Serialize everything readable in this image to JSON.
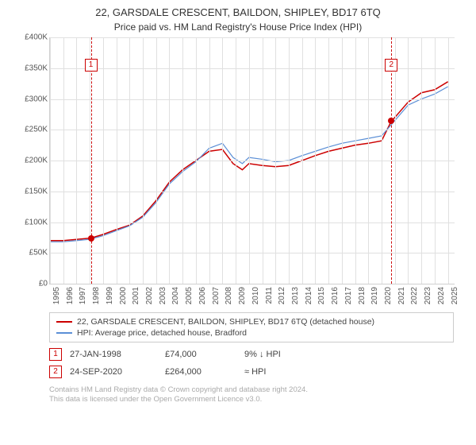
{
  "title": "22, GARSDALE CRESCENT, BAILDON, SHIPLEY, BD17 6TQ",
  "subtitle": "Price paid vs. HM Land Registry's House Price Index (HPI)",
  "chart": {
    "type": "line",
    "x_years": [
      1995,
      1996,
      1997,
      1998,
      1999,
      2000,
      2001,
      2002,
      2003,
      2004,
      2005,
      2006,
      2007,
      2008,
      2009,
      2010,
      2011,
      2012,
      2013,
      2014,
      2015,
      2016,
      2017,
      2018,
      2019,
      2020,
      2021,
      2022,
      2023,
      2024,
      2025
    ],
    "x_range": [
      1995,
      2025.5
    ],
    "ylim": [
      0,
      400000
    ],
    "ytick_step": 50000,
    "yticks": [
      0,
      50000,
      100000,
      150000,
      200000,
      250000,
      300000,
      350000,
      400000
    ],
    "ytick_labels": [
      "£0",
      "£50K",
      "£100K",
      "£150K",
      "£200K",
      "£250K",
      "£300K",
      "£350K",
      "£400K"
    ],
    "grid_color": "#e0e0e0",
    "background_color": "#ffffff",
    "series": [
      {
        "name": "property",
        "label": "22, GARSDALE CRESCENT, BAILDON, SHIPLEY, BD17 6TQ (detached house)",
        "color": "#cc0000",
        "line_width": 1.5,
        "data": [
          [
            1995,
            70000
          ],
          [
            1996,
            70000
          ],
          [
            1997,
            72000
          ],
          [
            1998.08,
            74000
          ],
          [
            1999,
            80000
          ],
          [
            2000,
            88000
          ],
          [
            2001,
            95000
          ],
          [
            2002,
            110000
          ],
          [
            2003,
            135000
          ],
          [
            2004,
            165000
          ],
          [
            2005,
            185000
          ],
          [
            2006,
            200000
          ],
          [
            2007,
            215000
          ],
          [
            2008,
            218000
          ],
          [
            2008.8,
            195000
          ],
          [
            2009.5,
            185000
          ],
          [
            2010,
            195000
          ],
          [
            2011,
            192000
          ],
          [
            2012,
            190000
          ],
          [
            2013,
            192000
          ],
          [
            2014,
            200000
          ],
          [
            2015,
            208000
          ],
          [
            2016,
            215000
          ],
          [
            2017,
            220000
          ],
          [
            2018,
            225000
          ],
          [
            2019,
            228000
          ],
          [
            2020,
            232000
          ],
          [
            2020.73,
            264000
          ],
          [
            2021,
            270000
          ],
          [
            2022,
            295000
          ],
          [
            2023,
            310000
          ],
          [
            2024,
            315000
          ],
          [
            2025,
            328000
          ]
        ]
      },
      {
        "name": "hpi",
        "label": "HPI: Average price, detached house, Bradford",
        "color": "#5b8fd6",
        "line_width": 1.2,
        "data": [
          [
            1995,
            68000
          ],
          [
            1996,
            68000
          ],
          [
            1997,
            70000
          ],
          [
            1998,
            72000
          ],
          [
            1999,
            78000
          ],
          [
            2000,
            86000
          ],
          [
            2001,
            94000
          ],
          [
            2002,
            108000
          ],
          [
            2003,
            132000
          ],
          [
            2004,
            162000
          ],
          [
            2005,
            182000
          ],
          [
            2006,
            198000
          ],
          [
            2007,
            220000
          ],
          [
            2008,
            228000
          ],
          [
            2008.8,
            205000
          ],
          [
            2009.5,
            195000
          ],
          [
            2010,
            205000
          ],
          [
            2011,
            202000
          ],
          [
            2012,
            198000
          ],
          [
            2013,
            200000
          ],
          [
            2014,
            208000
          ],
          [
            2015,
            215000
          ],
          [
            2016,
            222000
          ],
          [
            2017,
            228000
          ],
          [
            2018,
            232000
          ],
          [
            2019,
            236000
          ],
          [
            2020,
            240000
          ],
          [
            2021,
            265000
          ],
          [
            2022,
            290000
          ],
          [
            2023,
            300000
          ],
          [
            2024,
            308000
          ],
          [
            2025,
            320000
          ]
        ]
      }
    ],
    "markers": [
      {
        "n": "1",
        "x": 1998.08,
        "y": 74000,
        "box_y_top": true
      },
      {
        "n": "2",
        "x": 2020.73,
        "y": 264000,
        "box_y_top": true
      }
    ]
  },
  "legend": {
    "items": [
      {
        "color": "#cc0000",
        "label": "22, GARSDALE CRESCENT, BAILDON, SHIPLEY, BD17 6TQ (detached house)"
      },
      {
        "color": "#5b8fd6",
        "label": "HPI: Average price, detached house, Bradford"
      }
    ]
  },
  "transactions": [
    {
      "n": "1",
      "date": "27-JAN-1998",
      "price": "£74,000",
      "pct": "9% ↓ HPI"
    },
    {
      "n": "2",
      "date": "24-SEP-2020",
      "price": "£264,000",
      "pct": "≈ HPI"
    }
  ],
  "footer": {
    "line1": "Contains HM Land Registry data © Crown copyright and database right 2024.",
    "line2": "This data is licensed under the Open Government Licence v3.0."
  }
}
